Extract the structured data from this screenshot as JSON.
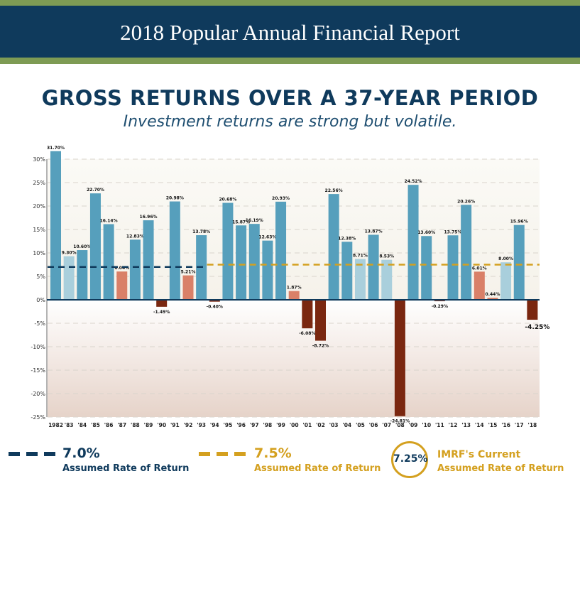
{
  "header": {
    "title": "2018 Popular Annual Financial Report"
  },
  "main_title": "GROSS RETURNS OVER A 37-YEAR PERIOD",
  "subtitle": "Investment returns are strong but volatile.",
  "colors": {
    "header_bg": "#0f3a5c",
    "accent_green": "#7e9b54",
    "bar_blue": "#569fbc",
    "bar_light_blue": "#a9cfdc",
    "bar_salmon": "#d98068",
    "bar_dark_red": "#7a2710",
    "line_navy": "#0f3a5c",
    "line_gold": "#d4a01f"
  },
  "chart_data": {
    "type": "bar",
    "ylim": [
      -25,
      30
    ],
    "yticks": [
      30,
      25,
      20,
      15,
      10,
      5,
      0,
      -5,
      -10,
      -15,
      -20,
      -25
    ],
    "ytick_labels": [
      "30%",
      "25%",
      "20%",
      "15%",
      "10%",
      "5%",
      "0%",
      "-5%",
      "-10%",
      "-15%",
      "-20%",
      "-25%"
    ],
    "grid": true,
    "categories": [
      "1982",
      "'83",
      "'84",
      "'85",
      "'86",
      "'87",
      "'88",
      "'89",
      "'90",
      "'91",
      "'92",
      "'93",
      "'94",
      "'95",
      "'96",
      "'97",
      "'98",
      "'99",
      "'00",
      "'01",
      "'02",
      "'03",
      "'04",
      "'05",
      "'06",
      "'07",
      "'08",
      "'09",
      "'10",
      "'11",
      "'12",
      "'13",
      "'14",
      "'15",
      "'16",
      "'17",
      "'18"
    ],
    "values": [
      31.7,
      9.3,
      10.6,
      22.7,
      16.14,
      6.04,
      12.83,
      16.96,
      -1.49,
      20.98,
      5.21,
      13.78,
      -0.4,
      20.68,
      15.87,
      16.19,
      12.63,
      20.93,
      1.87,
      -6.08,
      -8.72,
      22.56,
      12.38,
      8.71,
      13.87,
      8.53,
      -24.81,
      24.52,
      13.6,
      -0.29,
      13.75,
      20.26,
      6.01,
      0.44,
      8.0,
      15.96,
      -4.25
    ],
    "data_labels": [
      "31.70%",
      "9.30%",
      "10.60%",
      "22.70%",
      "16.14%",
      "6.04%",
      "12.83%",
      "16.96%",
      "-1.49%",
      "20.98%",
      "5.21%",
      "13.78%",
      "-0.40%",
      "20.68%",
      "15.87%",
      "16.19%",
      "12.63%",
      "20.93%",
      "1.87%",
      "-6.08%",
      "-8.72%",
      "22.56%",
      "12.38%",
      "8.71%",
      "13.87%",
      "8.53%",
      "-24.81%",
      "24.52%",
      "13.60%",
      "-0.29%",
      "13.75%",
      "20.26%",
      "6.01%",
      "0.44%",
      "8.00%",
      "15.96%",
      "-4.25%"
    ],
    "reference_lines": [
      {
        "value": 7.0,
        "from": "1982",
        "to": "'93",
        "color": "#0f3a5c",
        "style": "dashed"
      },
      {
        "value": 7.5,
        "from": "'93",
        "to": "'18",
        "color": "#d4a01f",
        "style": "dashed"
      }
    ]
  },
  "legend": [
    {
      "rate": "7.0%",
      "desc": "Assumed Rate of Return"
    },
    {
      "rate": "7.5%",
      "desc": "Assumed Rate of Return"
    },
    {
      "badge": "7.25%",
      "title": "IMRF's Current",
      "desc": "Assumed Rate of Return"
    }
  ]
}
